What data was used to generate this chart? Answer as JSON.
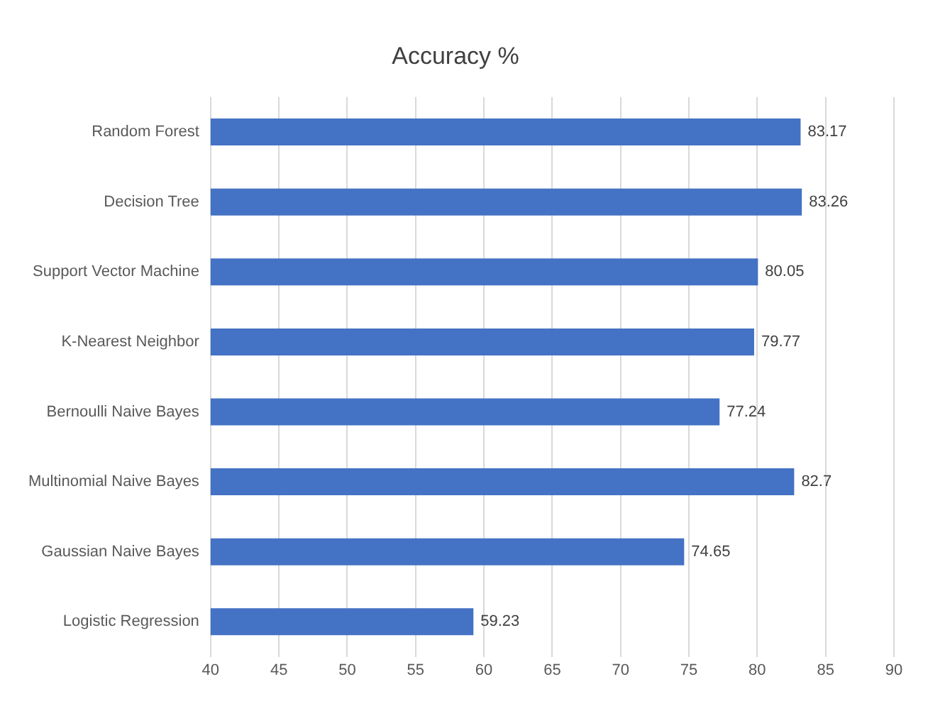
{
  "chart_data": {
    "type": "bar",
    "orientation": "horizontal",
    "title": "Accuracy %",
    "categories": [
      "Random Forest",
      "Decision Tree",
      "Support Vector Machine",
      "K-Nearest Neighbor",
      "Bernoulli Naive Bayes",
      "Multinomial Naive Bayes",
      "Gaussian Naive Bayes",
      "Logistic Regression"
    ],
    "values": [
      83.17,
      83.26,
      80.05,
      79.77,
      77.24,
      82.7,
      74.65,
      59.23
    ],
    "color": "#4472c4",
    "xlim": [
      40,
      90
    ],
    "xticks": [
      40,
      45,
      50,
      55,
      60,
      65,
      70,
      75,
      80,
      85,
      90
    ],
    "grid": "x",
    "data_labels": true,
    "legend": false
  }
}
